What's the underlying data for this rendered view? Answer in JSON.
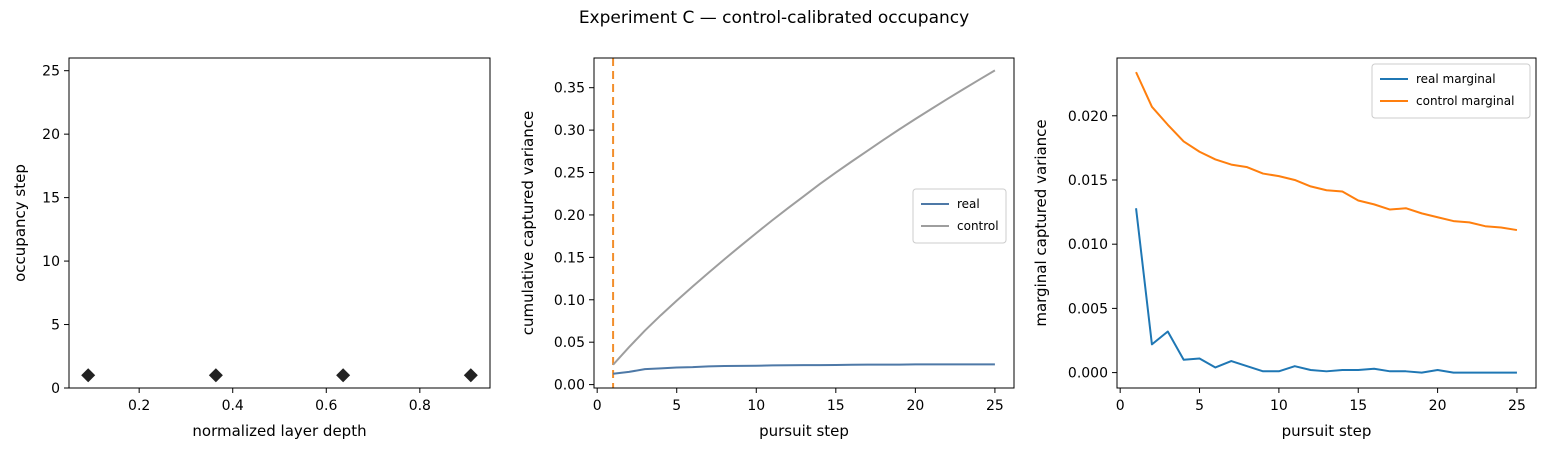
{
  "figure": {
    "title": "Experiment C — control-calibrated occupancy"
  },
  "chart_data": [
    {
      "type": "scatter",
      "xlabel": "normalized layer depth",
      "ylabel": "occupancy step",
      "xlim": [
        0.05,
        0.95
      ],
      "ylim": [
        0,
        26
      ],
      "xticks": [
        0.2,
        0.4,
        0.6,
        0.8
      ],
      "yticks": [
        0,
        5,
        10,
        15,
        20,
        25
      ],
      "grid": false,
      "marker": "diamond",
      "series": [
        {
          "x": [
            0.091,
            0.364,
            0.636,
            0.909
          ],
          "y": [
            1,
            1,
            1,
            1
          ],
          "color": "#222222"
        }
      ]
    },
    {
      "type": "line",
      "xlabel": "pursuit step",
      "ylabel": "cumulative captured variance",
      "xlim": [
        -0.2,
        26.2
      ],
      "ylim": [
        -0.004,
        0.385
      ],
      "xticks": [
        0,
        5,
        10,
        15,
        20,
        25
      ],
      "yticks": [
        0.0,
        0.05,
        0.1,
        0.15,
        0.2,
        0.25,
        0.3,
        0.35
      ],
      "ytick_decimals": 2,
      "grid": false,
      "legend": "center-right",
      "vline": {
        "x": 1,
        "color": "#f28e2b"
      },
      "series": [
        {
          "name": "real",
          "color": "#4e79a7",
          "x": [
            1,
            2,
            3,
            4,
            5,
            6,
            7,
            8,
            9,
            10,
            11,
            12,
            13,
            14,
            15,
            16,
            17,
            18,
            19,
            20,
            21,
            22,
            23,
            24,
            25
          ],
          "y": [
            0.0128,
            0.015,
            0.0182,
            0.0192,
            0.0202,
            0.0206,
            0.0215,
            0.022,
            0.0221,
            0.0222,
            0.0226,
            0.0228,
            0.0229,
            0.023,
            0.0231,
            0.0234,
            0.0235,
            0.0235,
            0.0236,
            0.0238,
            0.0238,
            0.0238,
            0.0238,
            0.0239,
            0.0239
          ]
        },
        {
          "name": "control",
          "color": "#9e9e9e",
          "x": [
            1,
            2,
            3,
            4,
            5,
            6,
            7,
            8,
            9,
            10,
            11,
            12,
            13,
            14,
            15,
            16,
            17,
            18,
            19,
            20,
            21,
            22,
            23,
            24,
            25
          ],
          "y": [
            0.0234,
            0.0441,
            0.0637,
            0.0818,
            0.099,
            0.1156,
            0.1318,
            0.1478,
            0.1633,
            0.1786,
            0.1936,
            0.2081,
            0.2223,
            0.2365,
            0.2499,
            0.263,
            0.2758,
            0.2886,
            0.301,
            0.3131,
            0.3249,
            0.3366,
            0.348,
            0.3593,
            0.3704
          ]
        }
      ]
    },
    {
      "type": "line",
      "xlabel": "pursuit step",
      "ylabel": "marginal captured variance",
      "xlim": [
        -0.2,
        26.2
      ],
      "ylim": [
        -0.0012,
        0.0245
      ],
      "xticks": [
        0,
        5,
        10,
        15,
        20,
        25
      ],
      "yticks": [
        0.0,
        0.005,
        0.01,
        0.015,
        0.02
      ],
      "ytick_decimals": 3,
      "grid": false,
      "legend": "top-right",
      "series": [
        {
          "name": "real marginal",
          "color": "#1f77b4",
          "x": [
            1,
            2,
            3,
            4,
            5,
            6,
            7,
            8,
            9,
            10,
            11,
            12,
            13,
            14,
            15,
            16,
            17,
            18,
            19,
            20,
            21,
            22,
            23,
            24,
            25
          ],
          "y": [
            0.0128,
            0.0022,
            0.0032,
            0.001,
            0.0011,
            0.0004,
            0.0009,
            0.0005,
            0.0001,
            0.0001,
            0.0005,
            0.0002,
            0.0001,
            0.0002,
            0.0002,
            0.0003,
            0.0001,
            0.0001,
            0.0,
            0.0002,
            0.0,
            0.0,
            0.0,
            0.0,
            0.0
          ]
        },
        {
          "name": "control marginal",
          "color": "#ff7f0e",
          "x": [
            1,
            2,
            3,
            4,
            5,
            6,
            7,
            8,
            9,
            10,
            11,
            12,
            13,
            14,
            15,
            16,
            17,
            18,
            19,
            20,
            21,
            22,
            23,
            24,
            25
          ],
          "y": [
            0.0234,
            0.0207,
            0.0193,
            0.018,
            0.0172,
            0.0166,
            0.0162,
            0.016,
            0.0155,
            0.0153,
            0.015,
            0.0145,
            0.0142,
            0.0141,
            0.0134,
            0.0131,
            0.0127,
            0.0128,
            0.0124,
            0.0121,
            0.0118,
            0.0117,
            0.0114,
            0.0113,
            0.0111
          ]
        }
      ]
    }
  ]
}
